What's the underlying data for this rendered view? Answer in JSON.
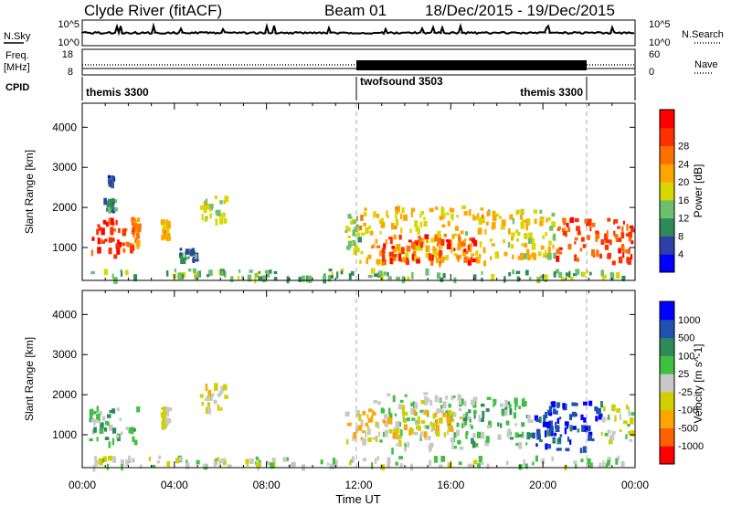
{
  "header": {
    "station": "Clyde River (fitACF)",
    "beam": "Beam 01",
    "dates": "18/Dec/2015 - 19/Dec/2015"
  },
  "sky_panel": {
    "left_label": "N.Sky",
    "right_label": "N.Search",
    "left_ticks": [
      "10^5",
      "10^0"
    ],
    "right_ticks": [
      "10^5",
      "10^0"
    ]
  },
  "freq_panel": {
    "left_label_1": "Freq.",
    "left_label_2": "[MHz]",
    "right_label": "Nave",
    "left_ticks": [
      "18",
      "8"
    ],
    "right_ticks": [
      "60",
      "0"
    ]
  },
  "cpid": {
    "label": "CPID",
    "segments": [
      {
        "name": "themis 3300",
        "start": 0,
        "end": 12
      },
      {
        "name": "twofsound 3503",
        "start": 12,
        "end": 22
      },
      {
        "name": "themis 3300",
        "start": 22,
        "end": 24
      }
    ]
  },
  "colors": {
    "power_scale": [
      "#0000ff",
      "#2f3fa8",
      "#2e8b57",
      "#6dc06d",
      "#d8d800",
      "#ffa500",
      "#ff7000",
      "#ff3000",
      "#ff0000"
    ],
    "velocity_scale": [
      "#ff0000",
      "#ff6000",
      "#ffa500",
      "#d0d000",
      "#c8c8c8",
      "#40c040",
      "#2e8b57",
      "#2050b0",
      "#0000ff"
    ]
  },
  "chart_data": [
    {
      "type": "heatmap",
      "title": "Power",
      "ylabel": "Slant Range [km]",
      "xlabel": "Time UT",
      "xlim": [
        "00:00",
        "00:00"
      ],
      "ylim": [
        180,
        4600
      ],
      "x_ticks": [
        "00:00",
        "04:00",
        "08:00",
        "12:00",
        "16:00",
        "20:00",
        "00:00"
      ],
      "y_ticks": [
        1000,
        2000,
        3000,
        4000
      ],
      "colorbar": {
        "label": "Power [dB]",
        "ticks": [
          4,
          8,
          12,
          16,
          20,
          24,
          28
        ],
        "range": [
          0,
          32
        ]
      },
      "blobs": [
        {
          "t0": 0.2,
          "t1": 2.1,
          "r0": 750,
          "r1": 1700,
          "v": 27
        },
        {
          "t0": 2.1,
          "t1": 2.4,
          "r0": 900,
          "r1": 1700,
          "v": 22
        },
        {
          "t0": 0.9,
          "t1": 1.4,
          "r0": 1900,
          "r1": 2200,
          "v": 10
        },
        {
          "t0": 1.1,
          "t1": 1.3,
          "r0": 2550,
          "r1": 2750,
          "v": 6
        },
        {
          "t0": 3.4,
          "t1": 3.7,
          "r0": 1200,
          "r1": 1650,
          "v": 18
        },
        {
          "t0": 4.2,
          "t1": 5.0,
          "r0": 650,
          "r1": 950,
          "v": 8
        },
        {
          "t0": 5.1,
          "t1": 6.2,
          "r0": 1600,
          "r1": 2250,
          "v": 15
        },
        {
          "t0": 11.4,
          "t1": 12.0,
          "r0": 900,
          "r1": 1800,
          "v": 14
        },
        {
          "t0": 12.0,
          "t1": 17.5,
          "r0": 600,
          "r1": 2000,
          "v": 18
        },
        {
          "t0": 13.0,
          "t1": 17.0,
          "r0": 600,
          "r1": 1300,
          "v": 27
        },
        {
          "t0": 17.5,
          "t1": 20.5,
          "r0": 700,
          "r1": 1900,
          "v": 17
        },
        {
          "t0": 20.5,
          "t1": 23.9,
          "r0": 600,
          "r1": 1700,
          "v": 26
        },
        {
          "t0": 0.3,
          "t1": 23.5,
          "r0": 180,
          "r1": 420,
          "v": 12
        }
      ]
    },
    {
      "type": "heatmap",
      "title": "Velocity",
      "ylabel": "Slant Range [km]",
      "xlabel": "Time UT",
      "xlim": [
        "00:00",
        "00:00"
      ],
      "ylim": [
        180,
        4600
      ],
      "x_ticks": [
        "00:00",
        "04:00",
        "08:00",
        "12:00",
        "16:00",
        "20:00",
        "00:00"
      ],
      "y_ticks": [
        1000,
        2000,
        3000,
        4000
      ],
      "colorbar": {
        "label": "Velocity [m s^-1]",
        "ticks": [
          -1000,
          -500,
          -100,
          -25,
          25,
          100,
          500,
          1000
        ],
        "range": [
          -1200,
          1200
        ]
      },
      "blobs": [
        {
          "t0": 0.2,
          "t1": 2.4,
          "r0": 750,
          "r1": 1700,
          "v": 300
        },
        {
          "t0": 3.4,
          "t1": 3.7,
          "r0": 1200,
          "r1": 1650,
          "v": -200
        },
        {
          "t0": 5.1,
          "t1": 6.2,
          "r0": 1600,
          "r1": 2250,
          "v": -150
        },
        {
          "t0": 11.4,
          "t1": 12.8,
          "r0": 800,
          "r1": 1800,
          "v": -300
        },
        {
          "t0": 12.8,
          "t1": 16.5,
          "r0": 600,
          "r1": 2000,
          "v": 100
        },
        {
          "t0": 13.0,
          "t1": 16.0,
          "r0": 900,
          "r1": 1600,
          "v": -350
        },
        {
          "t0": 16.5,
          "t1": 19.5,
          "r0": 700,
          "r1": 1900,
          "v": 250
        },
        {
          "t0": 19.5,
          "t1": 22.5,
          "r0": 600,
          "r1": 1800,
          "v": 900
        },
        {
          "t0": 22.5,
          "t1": 23.9,
          "r0": 800,
          "r1": 1700,
          "v": -100
        },
        {
          "t0": 0.3,
          "t1": 23.5,
          "r0": 180,
          "r1": 420,
          "v": 40
        }
      ]
    }
  ]
}
